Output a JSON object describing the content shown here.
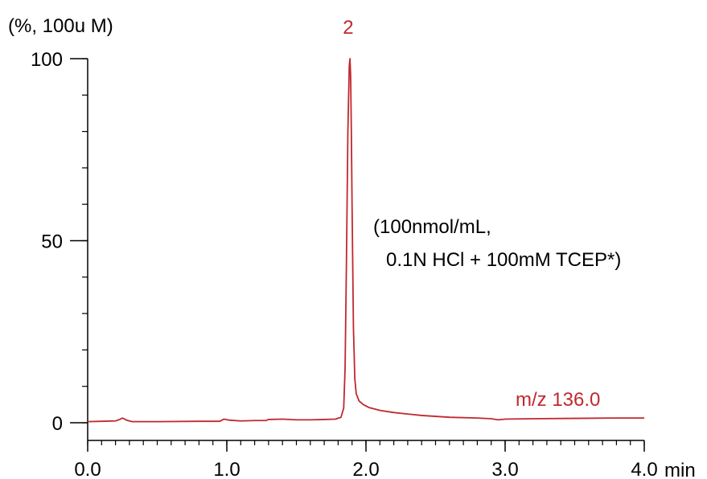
{
  "chart_data": {
    "type": "line",
    "y_unit_label": "(%, 100u M)",
    "x_unit_label": "min",
    "xlim": [
      0.0,
      4.0
    ],
    "ylim": [
      0,
      100
    ],
    "x_ticks": [
      {
        "value": 0.0,
        "label": "0.0"
      },
      {
        "value": 1.0,
        "label": "1.0"
      },
      {
        "value": 2.0,
        "label": "2.0"
      },
      {
        "value": 3.0,
        "label": "3.0"
      },
      {
        "value": 4.0,
        "label": "4.0"
      }
    ],
    "y_ticks": [
      {
        "value": 0,
        "label": "0"
      },
      {
        "value": 50,
        "label": "50"
      },
      {
        "value": 100,
        "label": "100"
      }
    ],
    "x_minor_step": 0.1,
    "y_minor_step": 10,
    "peak_label": {
      "text": "2",
      "x": 1.89,
      "y": 100
    },
    "condition_note": [
      "(100nmol/mL,",
      "0.1N HCl + 100mM TCEP*)"
    ],
    "trace_color": "#c0282e",
    "axis_color": "#000000",
    "series": [
      {
        "name": "m/z 136.0",
        "x": [
          0.0,
          0.1,
          0.2,
          0.23,
          0.25,
          0.28,
          0.32,
          0.5,
          0.8,
          0.95,
          0.98,
          1.02,
          1.1,
          1.2,
          1.28,
          1.3,
          1.4,
          1.5,
          1.6,
          1.7,
          1.78,
          1.82,
          1.84,
          1.85,
          1.86,
          1.87,
          1.88,
          1.885,
          1.89,
          1.895,
          1.9,
          1.91,
          1.92,
          1.93,
          1.95,
          1.98,
          2.02,
          2.1,
          2.2,
          2.4,
          2.6,
          2.8,
          2.9,
          2.95,
          3.0,
          3.2,
          3.5,
          3.8,
          4.0
        ],
        "y": [
          0.3,
          0.4,
          0.5,
          0.9,
          1.3,
          0.7,
          0.3,
          0.3,
          0.4,
          0.4,
          1.0,
          0.7,
          0.5,
          0.6,
          0.6,
          0.9,
          1.0,
          0.8,
          0.8,
          0.9,
          1.0,
          1.5,
          4.0,
          15,
          45,
          80,
          98,
          100,
          95,
          80,
          60,
          26,
          12,
          8,
          6,
          5,
          4.2,
          3.4,
          2.8,
          2.0,
          1.5,
          1.3,
          1.1,
          0.8,
          1.0,
          1.1,
          1.2,
          1.3,
          1.3
        ]
      }
    ]
  }
}
